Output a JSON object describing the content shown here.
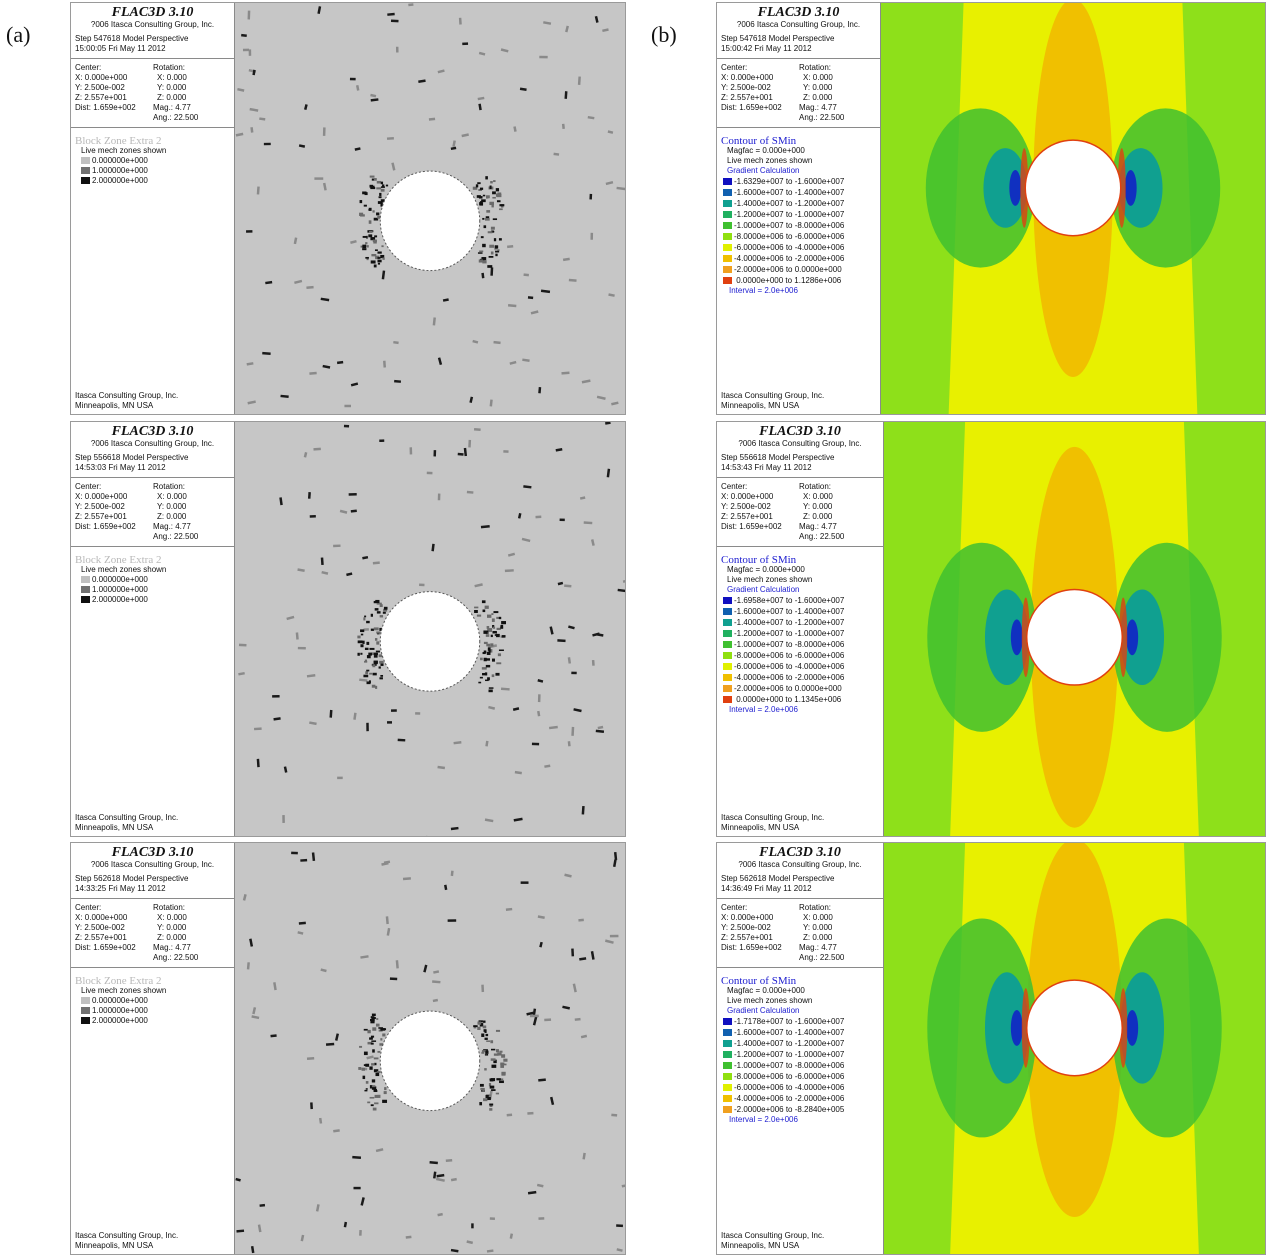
{
  "labels": {
    "a": "(a)",
    "b": "(b)"
  },
  "panels_a": [
    {
      "title": "FLAC3D 3.10",
      "copyright": "?006 Itasca Consulting Group, Inc.",
      "step": "Step 547618  Model Perspective",
      "time": "15:00:05 Fri May 11 2012",
      "center_label": "Center:",
      "rotation_label": "Rotation:",
      "cx": "X: 0.000e+000",
      "rx": "X:   0.000",
      "cy": "Y: 2.500e-002",
      "ry": "Y:   0.000",
      "cz": "Z: 2.557e+001",
      "rz": "Z:   0.000",
      "dist": "Dist: 1.659e+002",
      "mag": "Mag.:    4.77",
      "ang": "Ang.:  22.500",
      "plot_name": "Block Zone Extra 2",
      "shown": "Live mech zones shown",
      "items": [
        {
          "color": "#c0c0c0",
          "text": "0.000000e+000"
        },
        {
          "color": "#707070",
          "text": "1.000000e+000"
        },
        {
          "color": "#101010",
          "text": "2.000000e+000"
        }
      ],
      "footer1": "Itasca Consulting Group, Inc.",
      "footer2": "Minneapolis, MN  USA"
    },
    {
      "title": "FLAC3D 3.10",
      "copyright": "?006 Itasca Consulting Group, Inc.",
      "step": "Step 556618  Model Perspective",
      "time": "14:53:03 Fri May 11 2012",
      "center_label": "Center:",
      "rotation_label": "Rotation:",
      "cx": "X: 0.000e+000",
      "rx": "X:   0.000",
      "cy": "Y: 2.500e-002",
      "ry": "Y:   0.000",
      "cz": "Z: 2.557e+001",
      "rz": "Z:   0.000",
      "dist": "Dist: 1.659e+002",
      "mag": "Mag.:    4.77",
      "ang": "Ang.:  22.500",
      "plot_name": "Block Zone Extra 2",
      "shown": "Live mech zones shown",
      "items": [
        {
          "color": "#c0c0c0",
          "text": "0.000000e+000"
        },
        {
          "color": "#707070",
          "text": "1.000000e+000"
        },
        {
          "color": "#101010",
          "text": "2.000000e+000"
        }
      ],
      "footer1": "Itasca Consulting Group, Inc.",
      "footer2": "Minneapolis, MN  USA"
    },
    {
      "title": "FLAC3D 3.10",
      "copyright": "?006 Itasca Consulting Group, Inc.",
      "step": "Step 562618  Model Perspective",
      "time": "14:33:25 Fri May 11 2012",
      "center_label": "Center:",
      "rotation_label": "Rotation:",
      "cx": "X: 0.000e+000",
      "rx": "X:   0.000",
      "cy": "Y: 2.500e-002",
      "ry": "Y:   0.000",
      "cz": "Z: 2.557e+001",
      "rz": "Z:   0.000",
      "dist": "Dist: 1.659e+002",
      "mag": "Mag.:    4.77",
      "ang": "Ang.:  22.500",
      "plot_name": "Block Zone Extra 2",
      "shown": "Live mech zones shown",
      "items": [
        {
          "color": "#c0c0c0",
          "text": "0.000000e+000"
        },
        {
          "color": "#707070",
          "text": "1.000000e+000"
        },
        {
          "color": "#101010",
          "text": "2.000000e+000"
        }
      ],
      "footer1": "Itasca Consulting Group, Inc.",
      "footer2": "Minneapolis, MN  USA"
    }
  ],
  "panels_b": [
    {
      "title": "FLAC3D 3.10",
      "copyright": "?006 Itasca Consulting Group, Inc.",
      "step": "Step 547618  Model Perspective",
      "time": "15:00:42 Fri May 11 2012",
      "center_label": "Center:",
      "rotation_label": "Rotation:",
      "cx": "X: 0.000e+000",
      "rx": "X:   0.000",
      "cy": "Y: 2.500e-002",
      "ry": "Y:   0.000",
      "cz": "Z: 2.557e+001",
      "rz": "Z:   0.000",
      "dist": "Dist: 1.659e+002",
      "mag": "Mag.:    4.77",
      "ang": "Ang.:  22.500",
      "plot_name": "Contour of SMin",
      "magfac": "Magfac =  0.000e+000",
      "shown": "Live mech zones shown",
      "gradient": "Gradient Calculation",
      "items": [
        {
          "color": "#1010c0",
          "text": "-1.6329e+007 to -1.6000e+007"
        },
        {
          "color": "#1060b0",
          "text": "-1.6000e+007 to -1.4000e+007"
        },
        {
          "color": "#10a090",
          "text": "-1.4000e+007 to -1.2000e+007"
        },
        {
          "color": "#20b060",
          "text": "-1.2000e+007 to -1.0000e+007"
        },
        {
          "color": "#40c030",
          "text": "-1.0000e+007 to -8.0000e+006"
        },
        {
          "color": "#90e010",
          "text": "-8.0000e+006 to -6.0000e+006"
        },
        {
          "color": "#e0f000",
          "text": "-6.0000e+006 to -4.0000e+006"
        },
        {
          "color": "#f0c000",
          "text": "-4.0000e+006 to -2.0000e+006"
        },
        {
          "color": "#f0a020",
          "text": "-2.0000e+006 to  0.0000e+000"
        },
        {
          "color": "#e04010",
          "text": " 0.0000e+000 to  1.1286e+006"
        }
      ],
      "interval": "Interval =  2.0e+006",
      "footer1": "Itasca Consulting Group, Inc.",
      "footer2": "Minneapolis, MN  USA"
    },
    {
      "title": "FLAC3D 3.10",
      "copyright": "?006 Itasca Consulting Group, Inc.",
      "step": "Step 556618  Model Perspective",
      "time": "14:53:43 Fri May 11 2012",
      "center_label": "Center:",
      "rotation_label": "Rotation:",
      "cx": "X: 0.000e+000",
      "rx": "X:   0.000",
      "cy": "Y: 2.500e-002",
      "ry": "Y:   0.000",
      "cz": "Z: 2.557e+001",
      "rz": "Z:   0.000",
      "dist": "Dist: 1.659e+002",
      "mag": "Mag.:    4.77",
      "ang": "Ang.:  22.500",
      "plot_name": "Contour of SMin",
      "magfac": "Magfac =  0.000e+000",
      "shown": "Live mech zones shown",
      "gradient": "Gradient Calculation",
      "items": [
        {
          "color": "#1010c0",
          "text": "-1.6958e+007 to -1.6000e+007"
        },
        {
          "color": "#1060b0",
          "text": "-1.6000e+007 to -1.4000e+007"
        },
        {
          "color": "#10a090",
          "text": "-1.4000e+007 to -1.2000e+007"
        },
        {
          "color": "#20b060",
          "text": "-1.2000e+007 to -1.0000e+007"
        },
        {
          "color": "#40c030",
          "text": "-1.0000e+007 to -8.0000e+006"
        },
        {
          "color": "#90e010",
          "text": "-8.0000e+006 to -6.0000e+006"
        },
        {
          "color": "#e0f000",
          "text": "-6.0000e+006 to -4.0000e+006"
        },
        {
          "color": "#f0c000",
          "text": "-4.0000e+006 to -2.0000e+006"
        },
        {
          "color": "#f0a020",
          "text": "-2.0000e+006 to  0.0000e+000"
        },
        {
          "color": "#e04010",
          "text": " 0.0000e+000 to  1.1345e+006"
        }
      ],
      "interval": "Interval =  2.0e+006",
      "footer1": "Itasca Consulting Group, Inc.",
      "footer2": "Minneapolis, MN  USA"
    },
    {
      "title": "FLAC3D 3.10",
      "copyright": "?006 Itasca Consulting Group, Inc.",
      "step": "Step 562618  Model Perspective",
      "time": "14:36:49 Fri May 11 2012",
      "center_label": "Center:",
      "rotation_label": "Rotation:",
      "cx": "X: 0.000e+000",
      "rx": "X:   0.000",
      "cy": "Y: 2.500e-002",
      "ry": "Y:   0.000",
      "cz": "Z: 2.557e+001",
      "rz": "Z:   0.000",
      "dist": "Dist: 1.659e+002",
      "mag": "Mag.:    4.77",
      "ang": "Ang.:  22.500",
      "plot_name": "Contour of SMin",
      "magfac": "Magfac =  0.000e+000",
      "shown": "Live mech zones shown",
      "gradient": "Gradient Calculation",
      "items": [
        {
          "color": "#1010c0",
          "text": "-1.7178e+007 to -1.6000e+007"
        },
        {
          "color": "#1060b0",
          "text": "-1.6000e+007 to -1.4000e+007"
        },
        {
          "color": "#10a090",
          "text": "-1.4000e+007 to -1.2000e+007"
        },
        {
          "color": "#20b060",
          "text": "-1.2000e+007 to -1.0000e+007"
        },
        {
          "color": "#40c030",
          "text": "-1.0000e+007 to -8.0000e+006"
        },
        {
          "color": "#90e010",
          "text": "-8.0000e+006 to -6.0000e+006"
        },
        {
          "color": "#e0f000",
          "text": "-6.0000e+006 to -4.0000e+006"
        },
        {
          "color": "#f0c000",
          "text": "-4.0000e+006 to -2.0000e+006"
        },
        {
          "color": "#f0a020",
          "text": "-2.0000e+006 to -8.2840e+005"
        }
      ],
      "interval": "Interval =  2.0e+006",
      "footer1": "Itasca Consulting Group, Inc.",
      "footer2": "Minneapolis, MN  USA"
    }
  ]
}
